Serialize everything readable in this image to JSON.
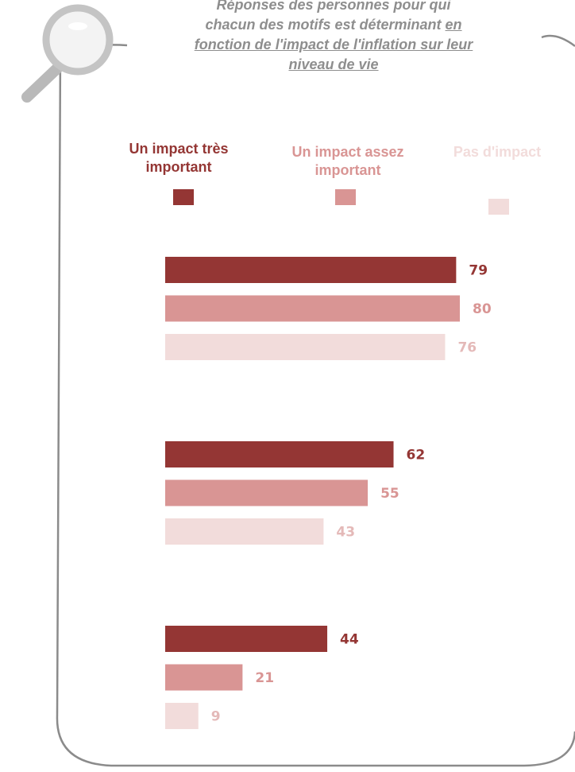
{
  "title": {
    "line1": "Réponses des personnes pour qui",
    "line2_plain": "chacun des motifs est déterminant",
    "line2_under": "en",
    "line3": "fonction de l'impact de l'inflation sur leur",
    "line4": "niveau de vie"
  },
  "legend": [
    {
      "label": "Un impact très important",
      "color": "#943634"
    },
    {
      "label": "Un impact assez important",
      "color": "#d99594"
    },
    {
      "label": "Pas d'impact",
      "color": "#f2dcdb"
    }
  ],
  "chart_data": {
    "type": "bar",
    "orientation": "horizontal",
    "series": [
      {
        "name": "Un impact très important",
        "color": "#943634",
        "label_color": "#943634",
        "values": [
          79,
          62,
          44
        ]
      },
      {
        "name": "Un impact assez important",
        "color": "#d99594",
        "label_color": "#d99594",
        "values": [
          80,
          55,
          21
        ]
      },
      {
        "name": "Pas d'impact",
        "color": "#f2dcdb",
        "label_color": "#e4b9b8",
        "values": [
          76,
          43,
          9
        ]
      }
    ],
    "xlim": [
      0,
      80
    ]
  }
}
